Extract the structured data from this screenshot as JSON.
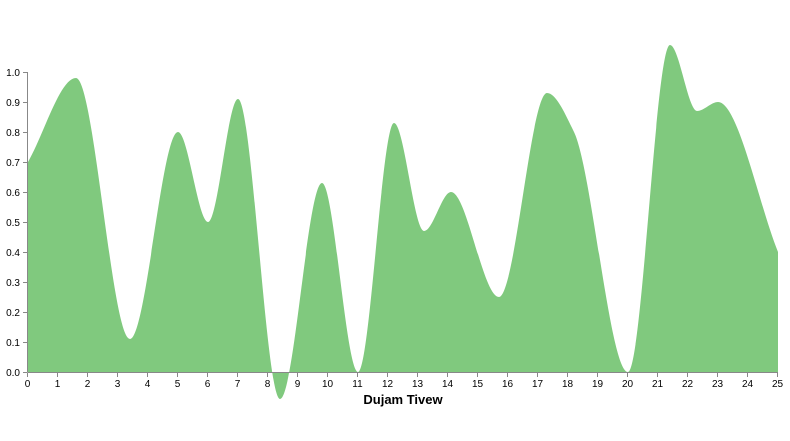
{
  "chart_data": {
    "type": "area",
    "title": "",
    "xlabel": "Dujam Tivew",
    "ylabel": "",
    "xlim": [
      0,
      25
    ],
    "ylim": [
      0,
      1.0
    ],
    "x_ticks": [
      0,
      1,
      2,
      3,
      4,
      5,
      6,
      7,
      8,
      9,
      10,
      11,
      12,
      13,
      14,
      15,
      16,
      17,
      18,
      19,
      20,
      21,
      22,
      23,
      24,
      25
    ],
    "y_ticks": [
      "0.0",
      "0.1",
      "0.2",
      "0.3",
      "0.4",
      "0.5",
      "0.6",
      "0.7",
      "0.8",
      "0.9",
      "1.0"
    ],
    "grid": false,
    "legend": "none",
    "series": [
      {
        "color": "#80c97e",
        "points": [
          [
            0,
            0.7
          ],
          [
            1.6,
            0.98
          ],
          [
            3.4,
            0.11
          ],
          [
            5,
            0.8
          ],
          [
            6,
            0.5
          ],
          [
            7,
            0.91
          ],
          [
            8.4,
            -0.09
          ],
          [
            9.8,
            0.63
          ],
          [
            11,
            0.0
          ],
          [
            12.2,
            0.83
          ],
          [
            13.2,
            0.47
          ],
          [
            14.1,
            0.6
          ],
          [
            15.7,
            0.25
          ],
          [
            17.3,
            0.93
          ],
          [
            18.2,
            0.8
          ],
          [
            20,
            0.0
          ],
          [
            21.4,
            1.09
          ],
          [
            22.3,
            0.87
          ],
          [
            23,
            0.9
          ],
          [
            25,
            0.4
          ]
        ]
      }
    ]
  }
}
